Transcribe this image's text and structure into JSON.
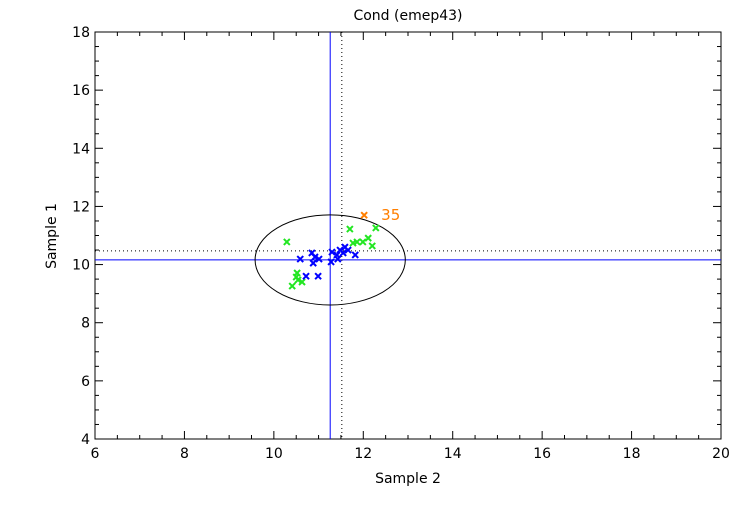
{
  "chart_data": {
    "type": "scatter",
    "title": "Cond (emep43)",
    "xlabel": "Sample 2",
    "ylabel": "Sample 1",
    "xlim": [
      6,
      20
    ],
    "ylim": [
      4,
      18
    ],
    "xticks": [
      6,
      8,
      10,
      12,
      14,
      16,
      18,
      20
    ],
    "yticks": [
      4,
      6,
      8,
      10,
      12,
      14,
      16,
      18
    ],
    "grid": false,
    "colors": {
      "green": "#22e622",
      "blue": "#0000ff",
      "orange": "#ff7f00",
      "axis": "#000000"
    },
    "reference_lines": {
      "vertical_solid": 11.26,
      "horizontal_solid": 10.16,
      "vertical_dotted": 11.52,
      "horizontal_dotted": 10.47
    },
    "ellipse": {
      "cx": 11.26,
      "cy": 10.16,
      "rx": 1.68,
      "ry": 1.55
    },
    "series": [
      {
        "name": "green",
        "color": "#22e622",
        "points": [
          [
            10.29,
            10.78
          ],
          [
            11.7,
            11.22
          ],
          [
            12.28,
            11.26
          ],
          [
            11.86,
            10.78
          ],
          [
            11.99,
            10.78
          ],
          [
            12.11,
            10.91
          ],
          [
            12.2,
            10.64
          ],
          [
            11.77,
            10.74
          ],
          [
            10.52,
            9.71
          ],
          [
            10.54,
            9.47
          ],
          [
            10.41,
            9.26
          ],
          [
            10.63,
            9.4
          ],
          [
            10.5,
            9.57
          ]
        ]
      },
      {
        "name": "blue",
        "color": "#0000ff",
        "points": [
          [
            10.59,
            10.19
          ],
          [
            10.85,
            10.4
          ],
          [
            10.92,
            10.26
          ],
          [
            10.88,
            10.05
          ],
          [
            11.01,
            10.19
          ],
          [
            10.72,
            9.6
          ],
          [
            10.99,
            9.6
          ],
          [
            11.28,
            10.09
          ],
          [
            11.3,
            10.43
          ],
          [
            11.41,
            10.33
          ],
          [
            11.48,
            10.5
          ],
          [
            11.59,
            10.6
          ],
          [
            11.66,
            10.5
          ],
          [
            11.55,
            10.4
          ],
          [
            11.82,
            10.33
          ],
          [
            11.43,
            10.19
          ]
        ]
      },
      {
        "name": "outlier",
        "color": "#ff7f00",
        "points": [
          [
            12.02,
            11.7
          ]
        ]
      }
    ],
    "annotations": [
      {
        "text": "35",
        "x": 12.02,
        "y": 11.7,
        "color": "#ff7f00"
      }
    ]
  }
}
